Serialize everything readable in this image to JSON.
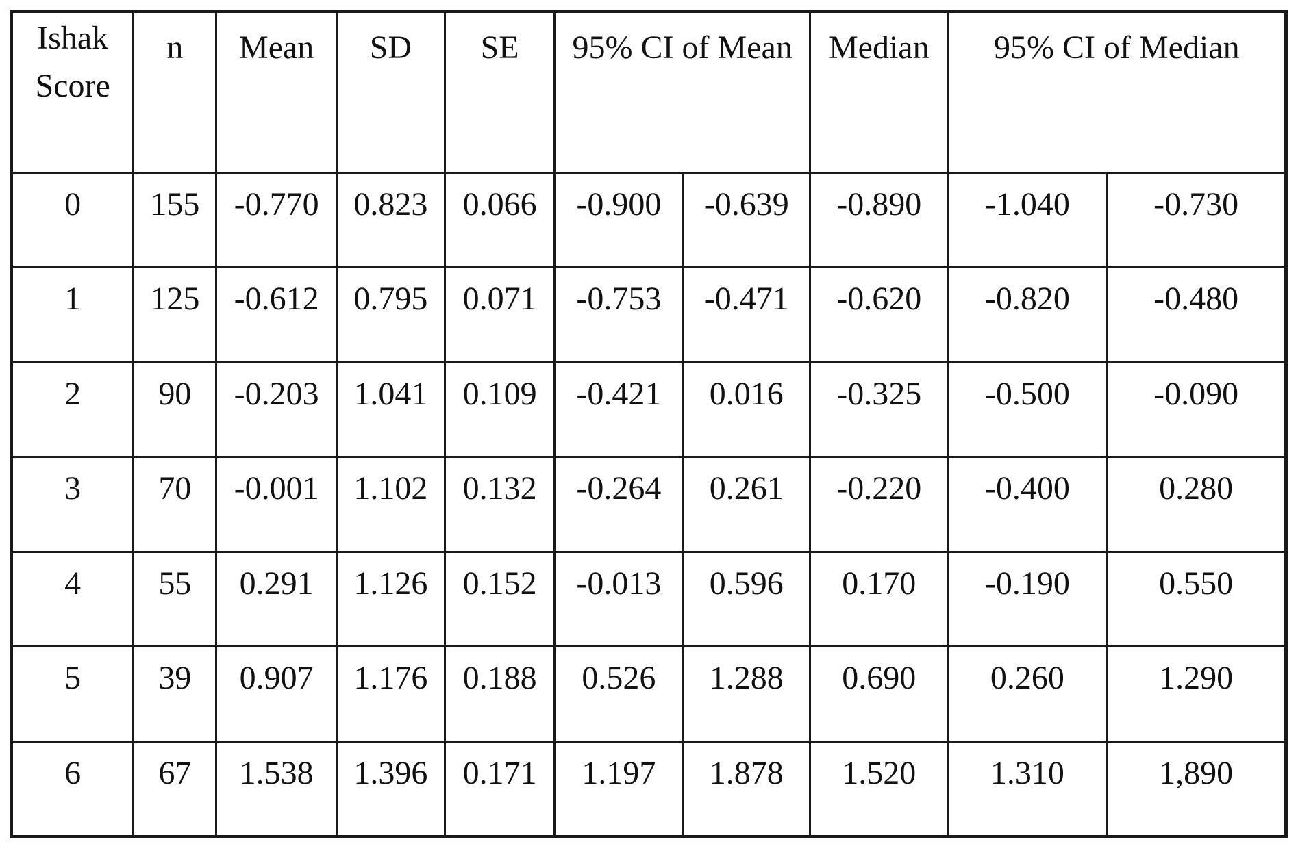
{
  "table": {
    "headers": [
      {
        "label": "Ishak Score",
        "colspan": 1
      },
      {
        "label": "n",
        "colspan": 1
      },
      {
        "label": "Mean",
        "colspan": 1
      },
      {
        "label": "SD",
        "colspan": 1
      },
      {
        "label": "SE",
        "colspan": 1
      },
      {
        "label": "95% CI of Mean",
        "colspan": 2
      },
      {
        "label": "Median",
        "colspan": 1
      },
      {
        "label": "95% CI of Median",
        "colspan": 2
      }
    ],
    "rows": [
      [
        "0",
        "155",
        "-0.770",
        "0.823",
        "0.066",
        "-0.900",
        "-0.639",
        "-0.890",
        "-1.040",
        "-0.730"
      ],
      [
        "1",
        "125",
        "-0.612",
        "0.795",
        "0.071",
        "-0.753",
        "-0.471",
        "-0.620",
        "-0.820",
        "-0.480"
      ],
      [
        "2",
        "90",
        "-0.203",
        "1.041",
        "0.109",
        "-0.421",
        "0.016",
        "-0.325",
        "-0.500",
        "-0.090"
      ],
      [
        "3",
        "70",
        "-0.001",
        "1.102",
        "0.132",
        "-0.264",
        "0.261",
        "-0.220",
        "-0.400",
        "0.280"
      ],
      [
        "4",
        "55",
        "0.291",
        "1.126",
        "0.152",
        "-0.013",
        "0.596",
        "0.170",
        "-0.190",
        "0.550"
      ],
      [
        "5",
        "39",
        "0.907",
        "1.176",
        "0.188",
        "0.526",
        "1.288",
        "0.690",
        "0.260",
        "1.290"
      ],
      [
        "6",
        "67",
        "1.538",
        "1.396",
        "0.171",
        "1.197",
        "1.878",
        "1.520",
        "1.310",
        "1,890"
      ]
    ]
  }
}
